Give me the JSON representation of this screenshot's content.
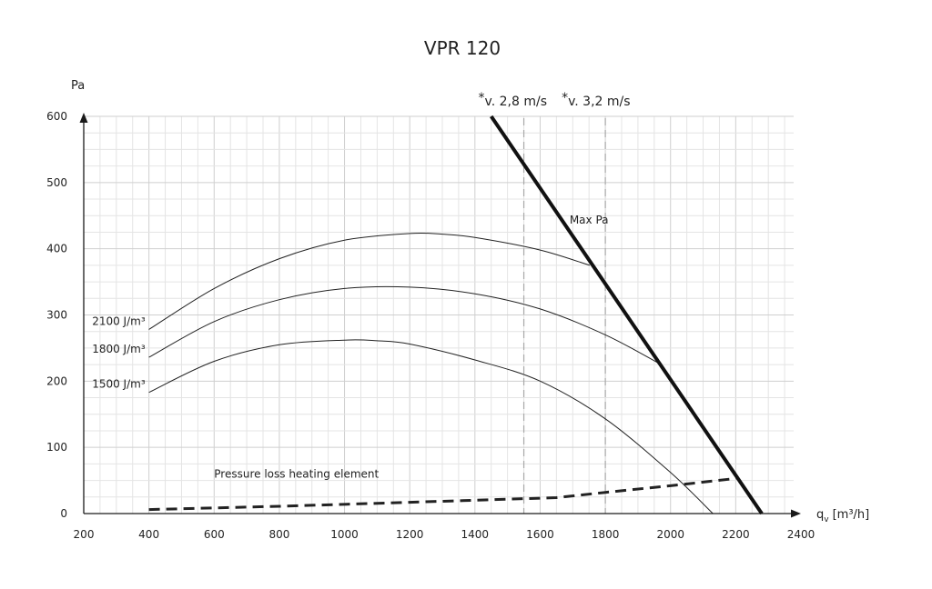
{
  "chart_data": {
    "type": "line",
    "title": "VPR 120",
    "ylabel": "Pa",
    "xlabel": "q",
    "xlabel_sub": "v",
    "xlabel_unit": "[m³/h]",
    "xlim": [
      200,
      2400
    ],
    "ylim": [
      0,
      600
    ],
    "x_ticks": [
      "200",
      "400",
      "600",
      "800",
      "1000",
      "1200",
      "1400",
      "1600",
      "1800",
      "2000",
      "2200",
      "2400"
    ],
    "y_ticks": [
      "0",
      "100",
      "200",
      "300",
      "400",
      "500",
      "600"
    ],
    "grid": true,
    "series": [
      {
        "name": "2100 J/m³",
        "x": [
          400,
          600,
          800,
          1000,
          1200,
          1300,
          1400,
          1600,
          1752
        ],
        "y": [
          278,
          340,
          385,
          413,
          423,
          422,
          417,
          398,
          375
        ]
      },
      {
        "name": "1800 J/m³",
        "x": [
          400,
          600,
          800,
          1000,
          1200,
          1400,
          1600,
          1800,
          1960
        ],
        "y": [
          236,
          290,
          323,
          340,
          342,
          332,
          309,
          270,
          228
        ]
      },
      {
        "name": "1500 J/m³",
        "x": [
          400,
          600,
          800,
          1000,
          1100,
          1200,
          1400,
          1600,
          1800,
          2000,
          2130
        ],
        "y": [
          183,
          230,
          255,
          262,
          261,
          256,
          232,
          200,
          143,
          62,
          0
        ]
      },
      {
        "name": "Pressure loss heating element",
        "style": "dashed",
        "x": [
          400,
          800,
          1200,
          1650,
          1800,
          2000,
          2200
        ],
        "y": [
          6,
          11,
          17,
          24,
          32,
          42,
          53
        ]
      },
      {
        "name": "Max Pa",
        "style": "bold",
        "x": [
          1450,
          2280
        ],
        "y": [
          600,
          0
        ]
      }
    ],
    "reference_lines": [
      {
        "label": "v. 2,8 m/s",
        "marker": "*",
        "x": 1550
      },
      {
        "label": "v. 3,2 m/s",
        "marker": "*",
        "x": 1800
      }
    ]
  }
}
